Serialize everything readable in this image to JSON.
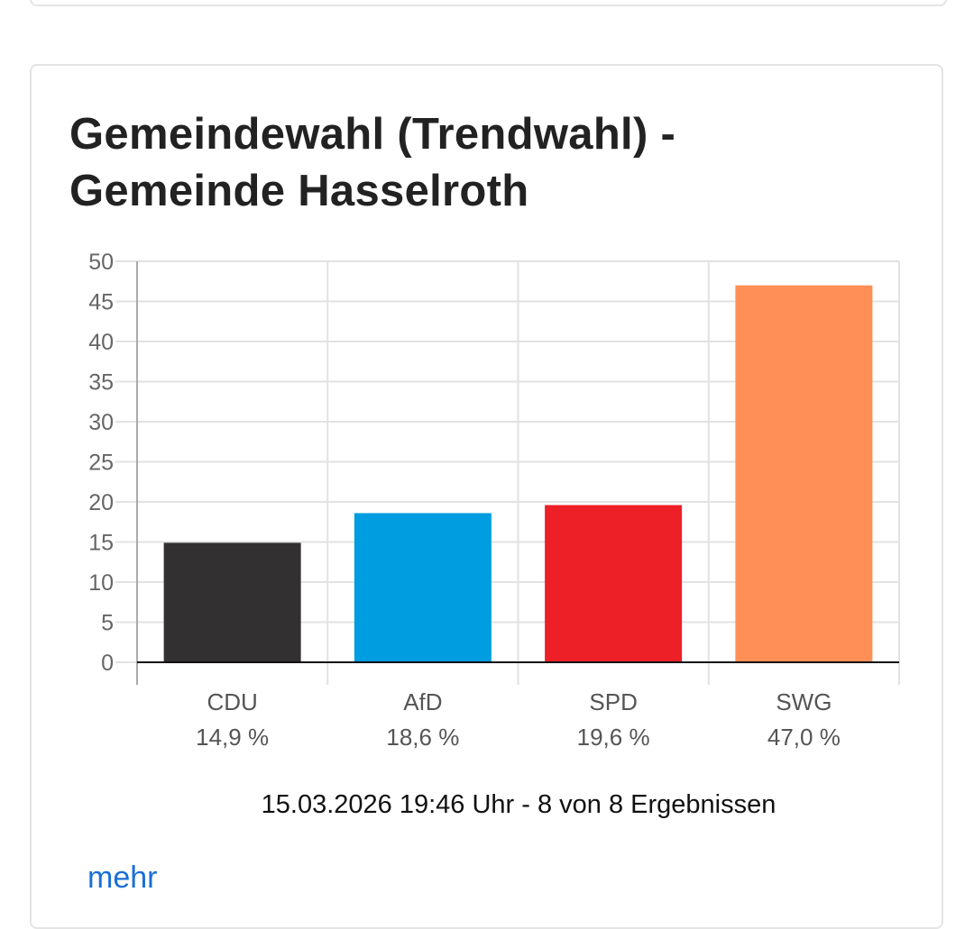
{
  "title_line1": "Gemeindewahl (Trendwahl) -",
  "title_line2": "Gemeinde Hasselroth",
  "chart_data": {
    "type": "bar",
    "title": "Gemeindewahl (Trendwahl) - Gemeinde Hasselroth",
    "categories": [
      "CDU",
      "AfD",
      "SPD",
      "SWG"
    ],
    "values": [
      14.9,
      18.6,
      19.6,
      47.0
    ],
    "value_labels": [
      "14,9 %",
      "18,6 %",
      "19,6 %",
      "47,0 %"
    ],
    "colors": [
      "#323031",
      "#009ee0",
      "#ed1f27",
      "#ff8f57"
    ],
    "ylim": [
      0,
      50
    ],
    "yticks": [
      0,
      5,
      10,
      15,
      20,
      25,
      30,
      35,
      40,
      45,
      50
    ],
    "xlabel": "",
    "ylabel": "",
    "grid": true
  },
  "timestamp": "15.03.2026 19:46 Uhr - 8 von 8 Ergebnissen",
  "more_link": "mehr"
}
